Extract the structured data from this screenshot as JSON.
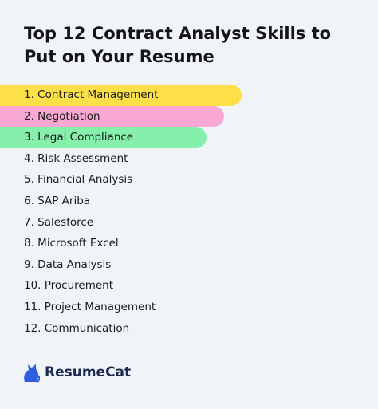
{
  "header": {
    "title": "Top 12 Contract Analyst Skills to Put on Your Resume"
  },
  "skills": [
    "1. Contract Management",
    "2. Negotiation",
    "3. Legal Compliance",
    "4. Risk Assessment",
    "5. Financial Analysis",
    "6. SAP Ariba",
    "7. Salesforce",
    "8. Microsoft Excel",
    "9. Data Analysis",
    "10. Procurement",
    "11. Project Management",
    "12. Communication"
  ],
  "brand": {
    "name": "ResumeCat"
  }
}
